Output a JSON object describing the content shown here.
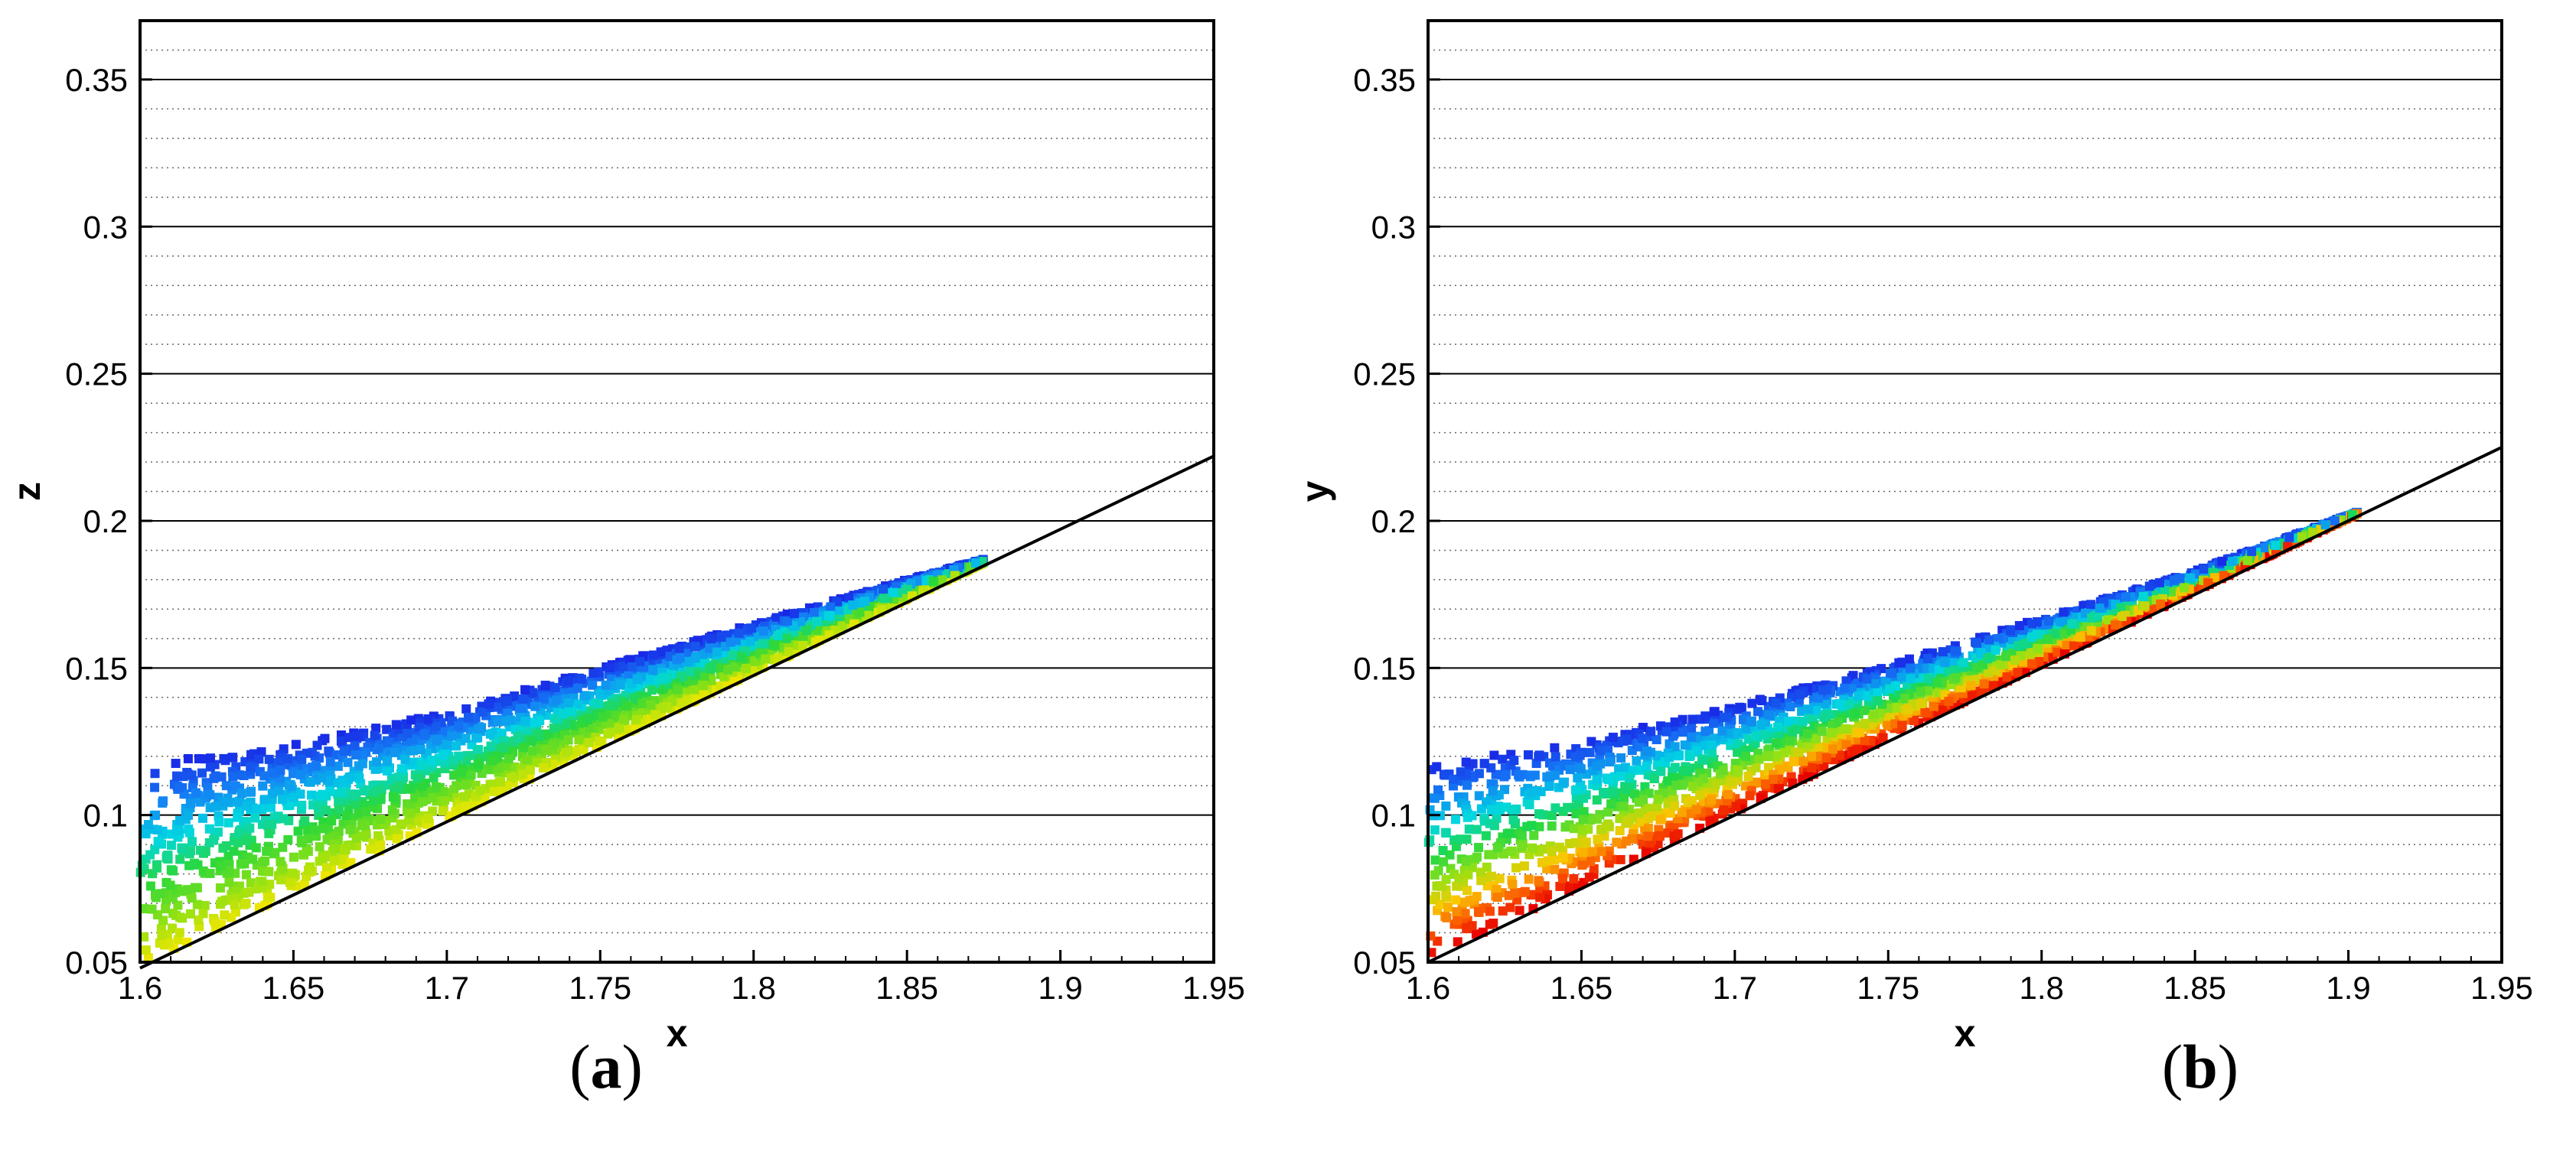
{
  "chart_data": [
    {
      "type": "scatter",
      "panel_label": "a",
      "xlabel": "x",
      "ylabel": "z",
      "xlim": [
        1.6,
        1.95
      ],
      "ylim": [
        0.05,
        0.37
      ],
      "xticks": [
        "1.6",
        "1.65",
        "1.7",
        "1.75",
        "1.8",
        "1.85",
        "1.9",
        "1.95"
      ],
      "yticks": [
        "0.05",
        "0.1",
        "0.15",
        "0.2",
        "0.25",
        "0.3",
        "0.35"
      ],
      "grid": "horizontal solid major, dotted minor",
      "reference_line": {
        "x": [
          1.6,
          1.95
        ],
        "y": [
          0.048,
          0.222
        ]
      },
      "cloud": {
        "x_start": 1.6,
        "x_end": 1.875,
        "upper_edge": {
          "x": [
            1.6,
            1.65,
            1.7,
            1.75,
            1.8,
            1.85,
            1.875
          ],
          "y": [
            0.117,
            0.124,
            0.135,
            0.15,
            0.165,
            0.18,
            0.187
          ]
        }
      },
      "colors": {
        "top": "#1a2ee8",
        "mid": "#00d8e8",
        "low": "#66e020",
        "bottom": "#f0e000"
      }
    },
    {
      "type": "scatter",
      "panel_label": "b",
      "xlabel": "x",
      "ylabel": "y",
      "xlim": [
        1.6,
        1.95
      ],
      "ylim": [
        0.05,
        0.37
      ],
      "xticks": [
        "1.6",
        "1.65",
        "1.7",
        "1.75",
        "1.8",
        "1.85",
        "1.9",
        "1.95"
      ],
      "yticks": [
        "0.05",
        "0.1",
        "0.15",
        "0.2",
        "0.25",
        "0.3",
        "0.35"
      ],
      "grid": "horizontal solid major, dotted minor",
      "reference_line": {
        "x": [
          1.6,
          1.95
        ],
        "y": [
          0.05,
          0.225
        ]
      },
      "cloud": {
        "x_start": 1.6,
        "x_end": 1.903,
        "upper_edge": {
          "x": [
            1.6,
            1.65,
            1.7,
            1.75,
            1.8,
            1.85,
            1.903
          ],
          "y": [
            0.117,
            0.125,
            0.137,
            0.151,
            0.167,
            0.183,
            0.203
          ]
        }
      },
      "colors": {
        "top": "#1a2ee8",
        "mid": "#00d8e8",
        "low": "#80e010",
        "bottom": "#e80000"
      }
    }
  ],
  "captions": {
    "a": {
      "open": "(",
      "letter": "a",
      "close": ")"
    },
    "b": {
      "open": "(",
      "letter": "b",
      "close": ")"
    }
  }
}
